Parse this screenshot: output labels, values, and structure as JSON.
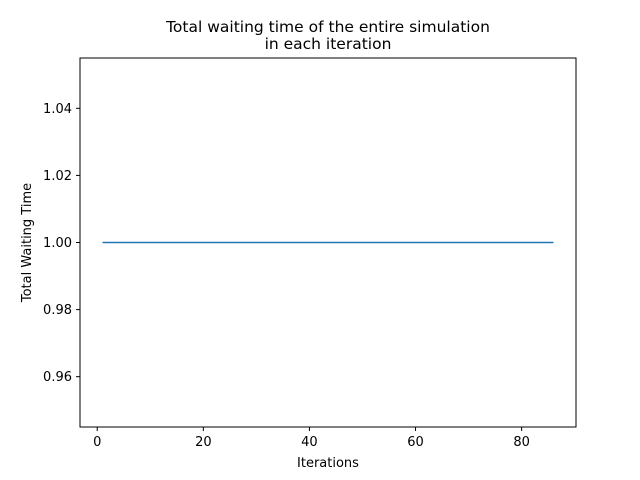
{
  "chart_data": {
    "type": "line",
    "title": [
      "Total waiting time of the entire simulation",
      "in each iteration"
    ],
    "xlabel": "Iterations",
    "ylabel": "Total Waiting Time",
    "xlim": [
      -3.25,
      90.25
    ],
    "ylim": [
      0.945,
      1.055
    ],
    "xticks": [
      0,
      20,
      40,
      60,
      80
    ],
    "xtick_labels": [
      "0",
      "20",
      "40",
      "60",
      "80"
    ],
    "yticks": [
      0.96,
      0.98,
      1.0,
      1.02,
      1.04
    ],
    "ytick_labels": [
      "0.96",
      "0.98",
      "1.00",
      "1.02",
      "1.04"
    ],
    "grid": false,
    "series": [
      {
        "color": "#1f77b4",
        "x": [
          1,
          86
        ],
        "y": [
          1.0,
          1.0
        ]
      }
    ]
  }
}
